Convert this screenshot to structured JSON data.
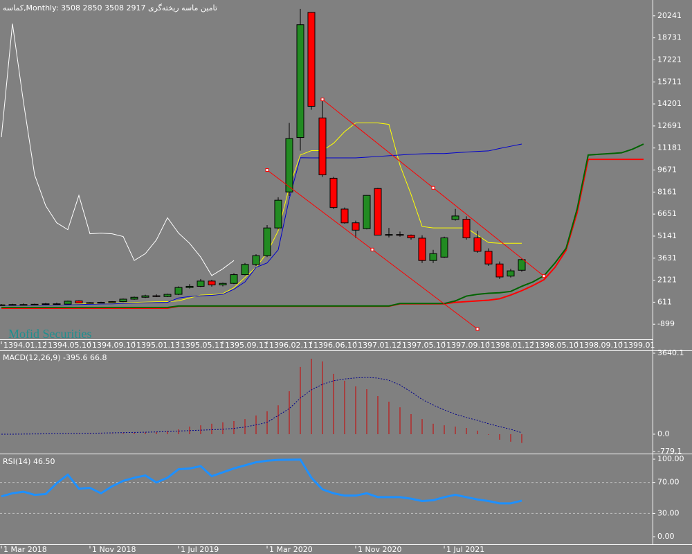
{
  "chart_data": [
    {
      "type": "candlestick",
      "title": "کماسه,Monthly:  3508 2850 3508 2917  تامین ماسه ریخته‌گری",
      "watermark": "Mofid Securities",
      "x_labels": [
        "1394.01.12",
        "1394.05.10",
        "1394.09.10",
        "1395.01.13",
        "1395.05.11",
        "1395.09.11",
        "1396.02.11",
        "1396.06.10",
        "1397.01.12",
        "1397.05.10",
        "1397.09.10",
        "1398.01.12",
        "1398.05.10",
        "1398.09.10",
        "1399.01"
      ],
      "ylim": [
        -1839,
        21087
      ],
      "yticks": [
        20241,
        18731,
        17221,
        15711,
        14201,
        12691,
        11181,
        9671,
        8161,
        6651,
        5141,
        3631,
        2121,
        611,
        -899
      ],
      "up_color": "#228b22",
      "down_color": "#ff0000",
      "candles": {
        "open": [
          400,
          430,
          450,
          440,
          470,
          500,
          480,
          700,
          560,
          580,
          600,
          650,
          820,
          950,
          1050,
          1000,
          1150,
          1620,
          1700,
          2060,
          1800,
          1900,
          2500,
          3200,
          3800,
          5700,
          8167,
          11900,
          20476,
          13241,
          9107,
          6993,
          6053,
          5650,
          8402,
          5200,
          5250,
          5200,
          5000,
          3470,
          3700,
          6280,
          6300,
          5020,
          4100,
          3230,
          2400,
          2800
        ],
        "high": [
          480,
          500,
          520,
          510,
          560,
          580,
          720,
          740,
          620,
          640,
          680,
          860,
          1000,
          1120,
          1150,
          1200,
          1700,
          1850,
          2200,
          2150,
          1950,
          2600,
          3300,
          3900,
          5900,
          7800,
          12900,
          20711,
          20500,
          14509,
          9200,
          7100,
          6200,
          7950,
          8450,
          5700,
          5450,
          5250,
          5200,
          4200,
          5100,
          7000,
          6500,
          5500,
          4300,
          3400,
          2900,
          3600
        ],
        "low": [
          380,
          400,
          420,
          410,
          430,
          460,
          460,
          540,
          530,
          540,
          580,
          620,
          780,
          900,
          960,
          960,
          1100,
          1550,
          1650,
          1680,
          1700,
          1850,
          2450,
          3100,
          3700,
          5600,
          7900,
          11000,
          13800,
          9200,
          7000,
          6000,
          5000,
          5600,
          5200,
          5050,
          5100,
          4900,
          3300,
          3300,
          3650,
          6200,
          4900,
          4000,
          3100,
          2200,
          2300,
          2700
        ],
        "close": [
          430,
          450,
          440,
          470,
          500,
          480,
          680,
          560,
          580,
          600,
          650,
          820,
          950,
          1050,
          1000,
          1150,
          1620,
          1700,
          2060,
          1800,
          1900,
          2500,
          3200,
          3800,
          5700,
          7600,
          11830,
          19630,
          14040,
          9341,
          7100,
          6050,
          5550,
          7930,
          5207,
          5250,
          5200,
          5020,
          3470,
          3940,
          5020,
          6520,
          5020,
          4100,
          3230,
          2340,
          2760,
          3530
        ]
      },
      "series": [
        {
          "type": "line",
          "color": "#ffff00",
          "width": 1,
          "values": [
            420,
            420,
            430,
            430,
            440,
            450,
            460,
            480,
            500,
            520,
            540,
            560,
            600,
            620,
            640,
            650,
            700,
            900,
            1100,
            1130,
            1200,
            1600,
            2300,
            3000,
            4000,
            5500,
            8500,
            10700,
            11000,
            11000,
            11500,
            12300,
            12900,
            12900,
            12900,
            12800,
            10000,
            8000,
            5800,
            5700,
            5700,
            5700,
            5700,
            5200,
            4700,
            4650,
            4650,
            4650
          ]
        },
        {
          "type": "line",
          "color": "#0000cd",
          "width": 1,
          "values": [
            400,
            400,
            410,
            410,
            420,
            430,
            440,
            450,
            470,
            490,
            500,
            520,
            550,
            570,
            590,
            600,
            900,
            1000,
            1050,
            1080,
            1150,
            1500,
            2000,
            3000,
            3300,
            4200,
            7700,
            10516,
            10500,
            10500,
            10500,
            10500,
            10500,
            10550,
            10600,
            10650,
            10700,
            10750,
            10780,
            10800,
            10800,
            10850,
            10900,
            10950,
            10980,
            11150,
            11300,
            11450
          ]
        },
        {
          "type": "line",
          "color": "#ffffff",
          "width": 1,
          "values": [
            11925,
            19700,
            14300,
            9341,
            7227,
            6053,
            5583,
            7932,
            5300,
            5348,
            5300,
            5114,
            3469,
            3939,
            4879,
            6400,
            5348,
            4644,
            3704,
            2436,
            2900,
            3469,
            null,
            null,
            null,
            null,
            null,
            null,
            null,
            null,
            null,
            null,
            null,
            null,
            null,
            null,
            null,
            null,
            null,
            null,
            null,
            null,
            null,
            null,
            null,
            null,
            null,
            null
          ]
        },
        {
          "type": "line",
          "color": "#ff0000",
          "width": 2,
          "values": [
            200,
            200,
            200,
            200,
            200,
            200,
            200,
            200,
            200,
            200,
            200,
            200,
            200,
            200,
            200,
            200,
            330,
            330,
            330,
            330,
            330,
            330,
            330,
            330,
            330,
            330,
            330,
            330,
            330,
            330,
            330,
            330,
            330,
            330,
            330,
            330,
            500,
            500,
            500,
            500,
            500,
            600,
            650,
            700,
            750,
            850,
            1100,
            1400,
            1750,
            2150,
            3000,
            4170,
            6750,
            10400,
            10400,
            10400,
            10400,
            10400,
            10400
          ]
        },
        {
          "type": "line",
          "color": "#006400",
          "width": 2,
          "values": [
            250,
            250,
            250,
            250,
            250,
            250,
            250,
            250,
            250,
            250,
            250,
            250,
            250,
            250,
            250,
            250,
            350,
            350,
            350,
            350,
            350,
            350,
            350,
            350,
            350,
            350,
            350,
            350,
            350,
            350,
            350,
            350,
            350,
            350,
            350,
            350,
            520,
            520,
            520,
            520,
            520,
            700,
            1030,
            1150,
            1220,
            1260,
            1350,
            1700,
            2000,
            2420,
            3300,
            4300,
            7000,
            10700,
            10750,
            10800,
            10850,
            11100,
            11450
          ]
        }
      ],
      "trendlines": [
        {
          "color": "#ff0000",
          "x": [
            29,
            39,
            49
          ],
          "y": [
            14509,
            8450,
            2400
          ]
        },
        {
          "color": "#ff0000",
          "x": [
            24,
            33.5,
            43
          ],
          "y": [
            9671,
            4220,
            -1229
          ]
        }
      ]
    },
    {
      "type": "bar",
      "title": "MACD(12,26,9) -395.6 66.8",
      "ylim": [
        -779.1,
        3640.1
      ],
      "yticks": [
        3640.1,
        {
          "value": 0,
          "label": "0.0"
        },
        -779.1
      ],
      "series": [
        {
          "type": "bar",
          "color": "#cc0000",
          "values": [
            0,
            0,
            0,
            0,
            0,
            0,
            10,
            10,
            15,
            15,
            20,
            40,
            60,
            80,
            100,
            150,
            218,
            340,
            400,
            470,
            530,
            590,
            680,
            840,
            1030,
            1300,
            1930,
            3020,
            3390,
            3270,
            2710,
            2400,
            2150,
            2020,
            1710,
            1460,
            1210,
            900,
            680,
            470,
            400,
            340,
            280,
            160,
            -30,
            -250,
            -340,
            -395.6
          ]
        },
        {
          "type": "line",
          "color": "#00008b",
          "dash": true,
          "width": 1,
          "values": [
            0,
            0,
            5,
            10,
            15,
            20,
            25,
            30,
            40,
            50,
            60,
            70,
            80,
            90,
            100,
            120,
            140,
            160,
            180,
            200,
            220,
            260,
            320,
            420,
            530,
            840,
            1150,
            1620,
            1990,
            2240,
            2400,
            2480,
            2530,
            2550,
            2520,
            2420,
            2210,
            1900,
            1560,
            1310,
            1090,
            900,
            750,
            620,
            470,
            340,
            220,
            66.8
          ]
        }
      ]
    },
    {
      "type": "line",
      "title": "RSI(14) 46.50",
      "x_labels": [
        "1 Mar 2018",
        "1 Nov 2018",
        "1 Jul 2019",
        "1 Mar 2020",
        "1 Nov 2020",
        "1 Jul 2021"
      ],
      "ylim": [
        -8.9,
        105.4
      ],
      "yticks": [
        {
          "value": 100,
          "label": "100.00"
        },
        {
          "value": 70,
          "label": "70.00"
        },
        {
          "value": 30,
          "label": "30.00"
        },
        {
          "value": 0,
          "label": "0.00"
        }
      ],
      "levels": [
        70,
        30
      ],
      "series": [
        {
          "type": "line",
          "color": "#1e90ff",
          "width": 3,
          "values": [
            52,
            56,
            58,
            54,
            55,
            69,
            80,
            62,
            63,
            56,
            65,
            72,
            76,
            79,
            70,
            76,
            87,
            88,
            91,
            78,
            83,
            88,
            92,
            96,
            98,
            99,
            99.3,
            99.5,
            76,
            61,
            56,
            53,
            53,
            56,
            51,
            51,
            51,
            49,
            46,
            47,
            51,
            54,
            51,
            48,
            46,
            43,
            43,
            46.5
          ]
        }
      ]
    }
  ]
}
